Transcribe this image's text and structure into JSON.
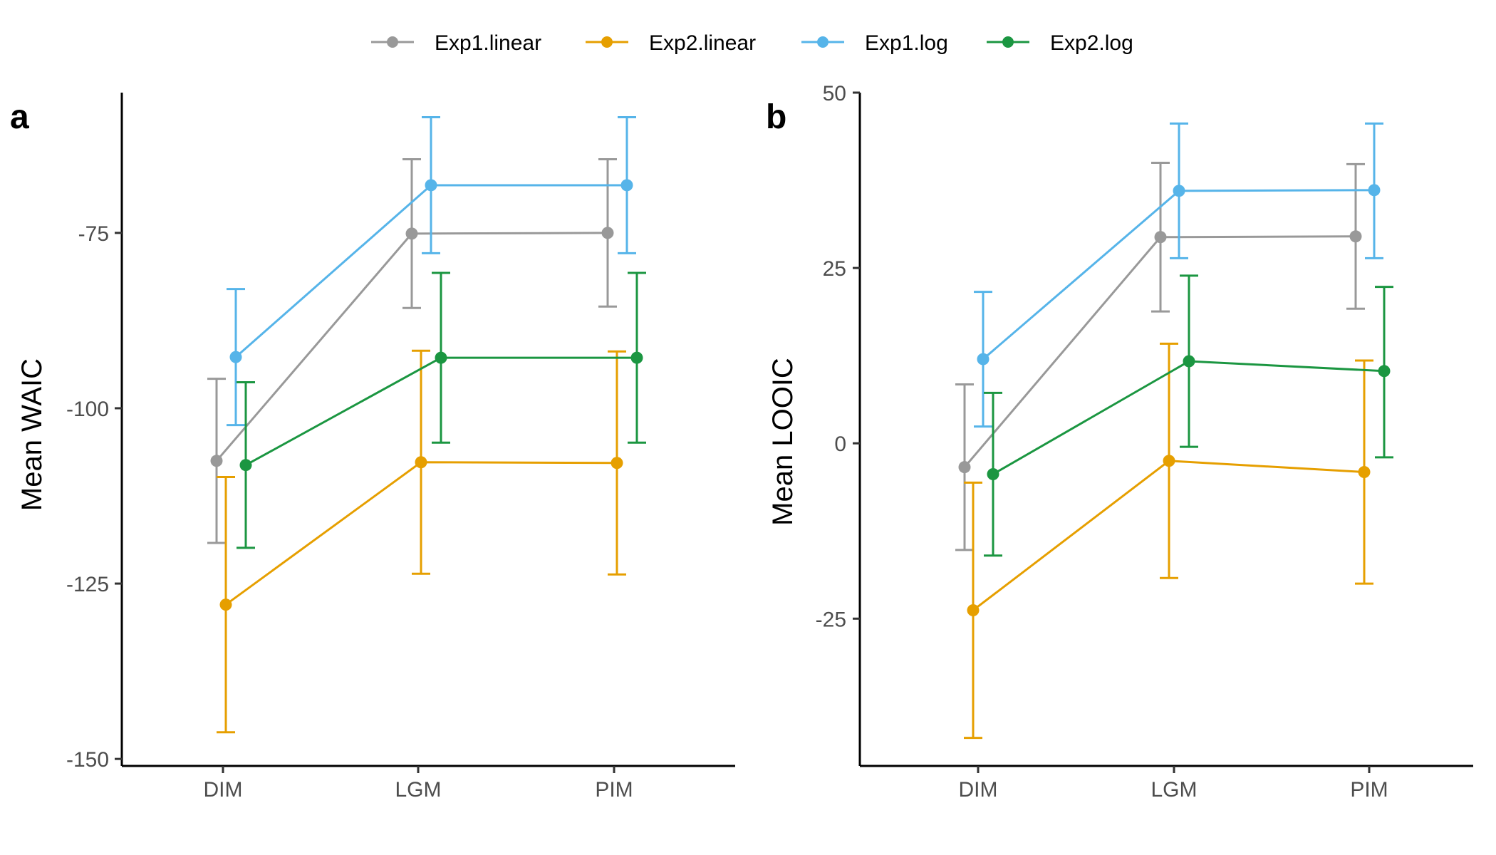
{
  "legend": [
    {
      "name": "Exp1.linear",
      "color": "#999999"
    },
    {
      "name": "Exp2.linear",
      "color": "#E69F00"
    },
    {
      "name": "Exp1.log",
      "color": "#56B4E9"
    },
    {
      "name": "Exp2.log",
      "color": "#1B9641"
    }
  ],
  "chart_data": [
    {
      "type": "line",
      "panel_tag": "a",
      "title": "",
      "xlabel": "",
      "ylabel": "Mean WAIC",
      "categories": [
        "DIM",
        "LGM",
        "PIM"
      ],
      "ylim": [
        -151,
        -55
      ],
      "yticks": [
        -150,
        -125,
        -100,
        -75
      ],
      "ytick_labels": [
        "-150",
        "-125",
        "-100",
        "-75"
      ],
      "legend_position": "top",
      "grid": false,
      "error_bars": true,
      "series": [
        {
          "name": "Exp1.linear",
          "color": "#999999",
          "values": [
            -107.5,
            -75.1,
            -75.0
          ],
          "lower": [
            -119.2,
            -85.7,
            -85.5
          ],
          "upper": [
            -95.8,
            -64.5,
            -64.5
          ]
        },
        {
          "name": "Exp2.linear",
          "color": "#E69F00",
          "values": [
            -128.0,
            -107.7,
            -107.8
          ],
          "lower": [
            -146.2,
            -123.6,
            -123.7
          ],
          "upper": [
            -109.8,
            -91.8,
            -91.9
          ]
        },
        {
          "name": "Exp1.log",
          "color": "#56B4E9",
          "values": [
            -92.7,
            -68.2,
            -68.2
          ],
          "lower": [
            -102.4,
            -77.9,
            -77.9
          ],
          "upper": [
            -83.0,
            -58.5,
            -58.5
          ]
        },
        {
          "name": "Exp2.log",
          "color": "#1B9641",
          "values": [
            -108.1,
            -92.8,
            -92.8
          ],
          "lower": [
            -119.9,
            -104.9,
            -104.9
          ],
          "upper": [
            -96.3,
            -80.7,
            -80.7
          ]
        }
      ]
    },
    {
      "type": "line",
      "panel_tag": "b",
      "title": "",
      "xlabel": "",
      "ylabel": "Mean LOOIC",
      "categories": [
        "DIM",
        "LGM",
        "PIM"
      ],
      "ylim": [
        -46,
        50
      ],
      "yticks": [
        -25,
        0,
        25,
        50
      ],
      "ytick_labels": [
        "-25",
        "0",
        "25",
        "50"
      ],
      "legend_position": "top",
      "grid": false,
      "error_bars": true,
      "series": [
        {
          "name": "Exp1.linear",
          "color": "#999999",
          "values": [
            -3.4,
            29.4,
            29.5
          ],
          "lower": [
            -15.2,
            18.8,
            19.2
          ],
          "upper": [
            8.4,
            40.0,
            39.8
          ]
        },
        {
          "name": "Exp2.linear",
          "color": "#E69F00",
          "values": [
            -23.8,
            -2.5,
            -4.1
          ],
          "lower": [
            -42.0,
            -19.2,
            -20.0
          ],
          "upper": [
            -5.6,
            14.2,
            11.8
          ]
        },
        {
          "name": "Exp1.log",
          "color": "#56B4E9",
          "values": [
            12.0,
            36.0,
            36.1
          ],
          "lower": [
            2.4,
            26.4,
            26.4
          ],
          "upper": [
            21.6,
            45.6,
            45.6
          ]
        },
        {
          "name": "Exp2.log",
          "color": "#1B9641",
          "values": [
            -4.4,
            11.7,
            10.3
          ],
          "lower": [
            -16.0,
            -0.5,
            -2.0
          ],
          "upper": [
            7.2,
            23.9,
            22.3
          ]
        }
      ]
    }
  ]
}
